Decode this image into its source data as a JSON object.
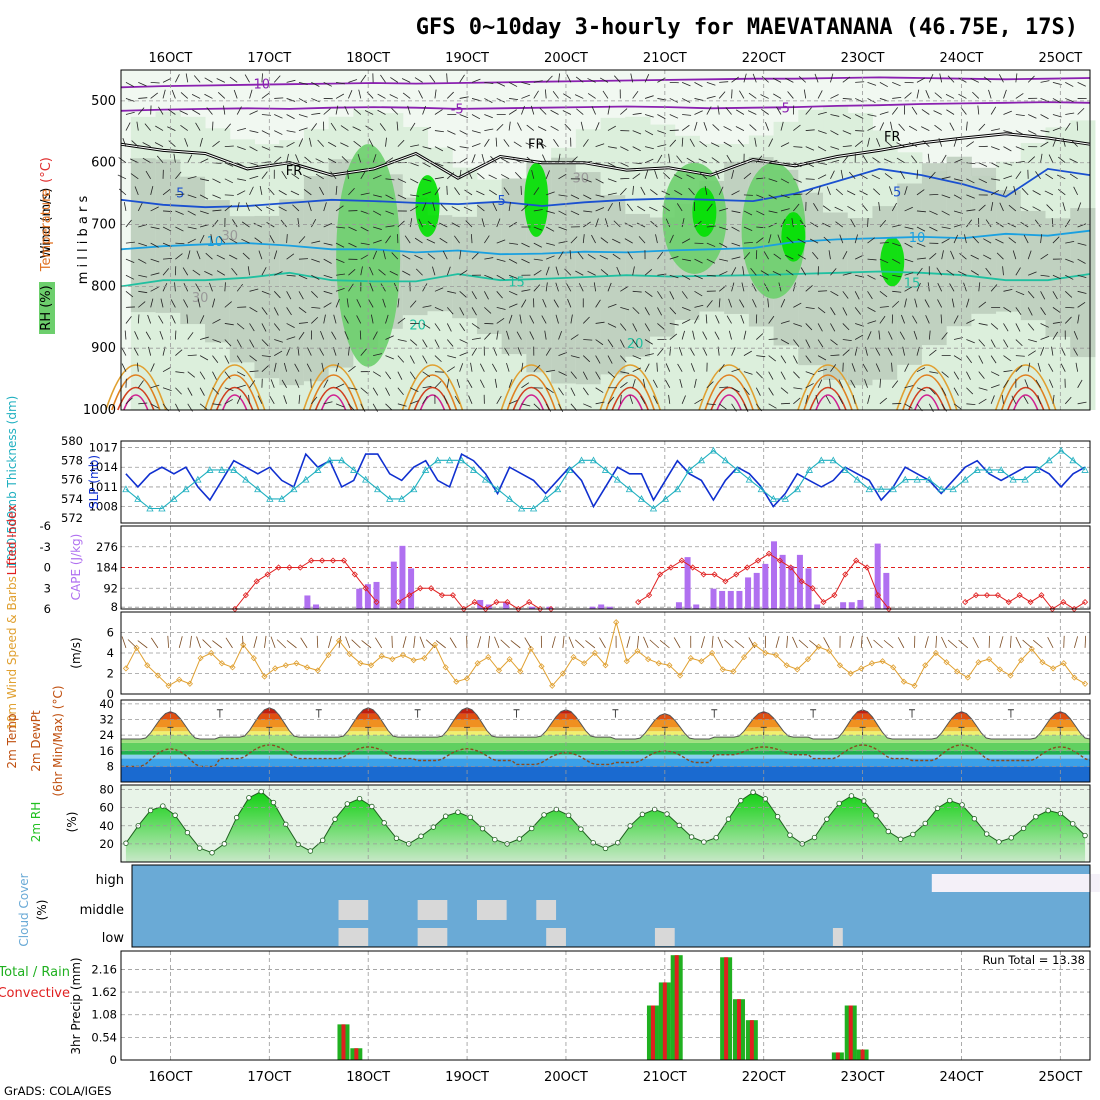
{
  "title": "GFS 0~10day 3-hourly for MAEVATANANA (46.75E, 17S)",
  "footer": "GrADS: COLA/IGES",
  "x_ticks": [
    "16OCT",
    "17OCT",
    "18OCT",
    "19OCT",
    "20OCT",
    "21OCT",
    "22OCT",
    "23OCT",
    "24OCT",
    "25OCT"
  ],
  "colors": {
    "rh_light": "#dcefdc",
    "rh_grey": "#b9c9b9",
    "rh_mid": "#6dcf6d",
    "rh_bright": "#00e000",
    "slp": "#1030d0",
    "thickness": "#20b0c0",
    "lifted_index": "#e02020",
    "cape": "#b070f0",
    "wind_speed": "#e0a030",
    "rh2m": "#20c020",
    "cloud": "#6aaad6",
    "cloud_clear": "#d8d8d8",
    "precip_total": "#20b020",
    "precip_conv": "#e02020"
  },
  "chart_data": [
    {
      "type": "heatmap",
      "name": "Upper air cross-section",
      "ylabel": "m i l l i b a r s",
      "yticks": [
        500,
        600,
        700,
        800,
        900,
        1000
      ],
      "ylim": [
        450,
        1000
      ],
      "legend_labels": {
        "rh": "RH (%)",
        "temperature": "Temperature",
        "unit": "(°C)",
        "wind": "Wind (m/s)"
      },
      "contour_labels": {
        "purple": [
          "-10",
          "-5",
          "-5"
        ],
        "freezing": [
          "FR",
          "FR",
          "FR"
        ],
        "blue": [
          "5",
          "5",
          "5"
        ],
        "lightblue": [
          "10",
          "10"
        ],
        "teal": [
          "15",
          "15",
          "20",
          "20"
        ],
        "rh": [
          "30",
          "30",
          "30"
        ]
      },
      "isotherms": [
        {
          "label": "-10",
          "p": [
            478,
            476,
            475,
            474,
            473,
            472,
            471,
            472,
            471,
            470,
            469,
            468,
            467,
            466,
            465,
            464,
            464,
            463,
            462,
            463,
            464,
            465,
            464,
            463
          ]
        },
        {
          "label": "-5",
          "p": [
            516,
            514,
            513,
            512,
            513,
            511,
            510,
            511,
            513,
            512,
            511,
            510,
            509,
            510,
            512,
            511,
            510,
            508,
            507,
            505,
            504,
            503,
            502,
            503
          ]
        },
        {
          "label": "FR",
          "p": [
            570,
            580,
            585,
            610,
            600,
            620,
            610,
            585,
            625,
            590,
            600,
            600,
            612,
            608,
            620,
            595,
            605,
            590,
            580,
            568,
            560,
            553,
            560,
            570
          ]
        },
        {
          "label": "5",
          "p": [
            660,
            668,
            672,
            670,
            665,
            660,
            662,
            665,
            667,
            663,
            670,
            664,
            660,
            658,
            660,
            662,
            650,
            630,
            610,
            620,
            635,
            655,
            610,
            620
          ]
        },
        {
          "label": "10",
          "p": [
            740,
            735,
            732,
            730,
            734,
            740,
            740,
            745,
            742,
            748,
            747,
            744,
            745,
            742,
            740,
            738,
            728,
            724,
            722,
            720,
            722,
            715,
            718,
            710
          ]
        },
        {
          "label": "15",
          "p": [
            800,
            790,
            790,
            786,
            778,
            790,
            792,
            792,
            780,
            790,
            788,
            785,
            782,
            784,
            783,
            782,
            780,
            778,
            776,
            778,
            782,
            790,
            790,
            780
          ]
        }
      ],
      "rh_blobs": [
        {
          "day": 18.0,
          "p": [
            570,
            930
          ],
          "level": "mid"
        },
        {
          "day": 18.6,
          "p": [
            620,
            720
          ],
          "level": "bright"
        },
        {
          "day": 19.7,
          "p": [
            600,
            720
          ],
          "level": "bright"
        },
        {
          "day": 21.3,
          "p": [
            600,
            780
          ],
          "level": "mid"
        },
        {
          "day": 21.4,
          "p": [
            640,
            720
          ],
          "level": "bright"
        },
        {
          "day": 22.1,
          "p": [
            600,
            820
          ],
          "level": "mid"
        },
        {
          "day": 22.3,
          "p": [
            680,
            760
          ],
          "level": "bright"
        },
        {
          "day": 23.3,
          "p": [
            720,
            800
          ],
          "level": "bright"
        }
      ]
    },
    {
      "type": "line",
      "name": "SLP and 1000-500mb thickness",
      "left_axis": {
        "label": "1000-500mb Thickness (dm)",
        "ticks": [
          572,
          574,
          576,
          578,
          580
        ],
        "ylim": [
          571.5,
          580
        ]
      },
      "right_axis": {
        "label": "SLP (mb)",
        "ticks": [
          1008,
          1011,
          1014,
          1017
        ],
        "ylim": [
          1005.5,
          1018
        ]
      },
      "series": [
        {
          "name": "SLP",
          "values": [
            1013,
            1011,
            1013,
            1014,
            1013,
            1014,
            1011,
            1009,
            1012,
            1015,
            1014,
            1013,
            1014,
            1012,
            1011,
            1016,
            1014,
            1015,
            1011,
            1012,
            1016,
            1016,
            1013,
            1012,
            1014,
            1015,
            1012,
            1011,
            1016,
            1015,
            1013,
            1010,
            1014,
            1013,
            1012,
            1010,
            1012,
            1014,
            1012,
            1008,
            1011,
            1014,
            1013,
            1013,
            1009,
            1012,
            1015,
            1013,
            1012,
            1009,
            1012,
            1014,
            1013,
            1011,
            1008,
            1010,
            1013,
            1012,
            1011,
            1012,
            1014,
            1013,
            1012,
            1009,
            1011,
            1014,
            1013,
            1012,
            1010,
            1012,
            1014,
            1015,
            1013,
            1012,
            1013,
            1014,
            1014,
            1013,
            1011,
            1013,
            1014
          ]
        },
        {
          "name": "Thickness",
          "values": [
            575,
            574,
            573,
            573,
            574,
            575,
            576,
            577,
            577,
            577,
            576,
            575,
            574,
            574,
            575,
            576,
            577,
            578,
            578,
            577,
            576,
            575,
            574,
            574,
            575,
            577,
            578,
            578,
            578,
            577,
            576,
            575,
            574,
            573,
            573,
            574,
            575,
            577,
            578,
            578,
            577,
            576,
            575,
            574,
            573,
            574,
            575,
            577,
            578,
            579,
            578,
            577,
            576,
            575,
            574,
            574,
            575,
            577,
            578,
            578,
            577,
            576,
            575,
            575,
            575,
            576,
            576,
            576,
            575,
            575,
            576,
            577,
            577,
            577,
            576,
            576,
            577,
            578,
            579,
            578,
            577
          ]
        }
      ]
    },
    {
      "type": "bar",
      "name": "CAPE and Lifted Index",
      "left_axis": {
        "label": "Lifted Index",
        "ticks": [
          -6,
          -3,
          0,
          3,
          6
        ],
        "ylim": [
          -6,
          6
        ]
      },
      "right_axis": {
        "label": "CAPE (J/kg)",
        "ticks": [
          8,
          92,
          184,
          276
        ],
        "ylim": [
          0,
          368
        ]
      },
      "lifted_index": [
        null,
        null,
        null,
        null,
        null,
        null,
        null,
        null,
        null,
        null,
        6,
        4,
        2,
        1,
        0,
        0,
        0,
        -1,
        -1,
        -1,
        -1,
        1,
        3,
        5,
        null,
        5,
        4,
        3,
        3,
        4,
        4,
        6,
        5,
        6,
        5,
        5,
        6,
        5,
        6,
        6,
        null,
        null,
        null,
        null,
        null,
        null,
        null,
        5,
        4,
        1,
        0,
        -1,
        0,
        1,
        1,
        2,
        1,
        0,
        -1,
        -2,
        -1,
        0,
        2,
        3,
        5,
        4,
        1,
        -1,
        0,
        4,
        6,
        null,
        null,
        null,
        null,
        null,
        null,
        5,
        4,
        4,
        4,
        5,
        4,
        5,
        4,
        6,
        5,
        6,
        5
      ],
      "cape": [
        0,
        0,
        0,
        0,
        0,
        0,
        0,
        0,
        0,
        0,
        0,
        0,
        0,
        0,
        0,
        0,
        0,
        0,
        0,
        0,
        0,
        60,
        20,
        0,
        0,
        0,
        0,
        90,
        110,
        120,
        0,
        210,
        280,
        180,
        0,
        0,
        0,
        0,
        0,
        0,
        0,
        40,
        20,
        0,
        30,
        0,
        0,
        10,
        0,
        10,
        0,
        0,
        0,
        0,
        10,
        20,
        10,
        0,
        0,
        0,
        0,
        0,
        0,
        0,
        30,
        230,
        20,
        0,
        90,
        80,
        80,
        80,
        140,
        160,
        200,
        300,
        240,
        190,
        240,
        180,
        20,
        0,
        0,
        30,
        30,
        40,
        0,
        290,
        160,
        0,
        0,
        0,
        0,
        0,
        0,
        0,
        0,
        0,
        0,
        0,
        0,
        0,
        0,
        0,
        0,
        0,
        0,
        0,
        0,
        0,
        0,
        0
      ]
    },
    {
      "type": "line",
      "name": "10m Wind Speed & Barbs",
      "ylabel": "10m Wind Speed & Barbs",
      "yunit": "(m/s)",
      "yticks": [
        0,
        2,
        4,
        6
      ],
      "ylim": [
        0,
        8
      ],
      "series": [
        {
          "name": "10m wind speed",
          "values": [
            2.5,
            4.5,
            2.8,
            1.8,
            0.8,
            1.4,
            1.0,
            3.5,
            4.0,
            3.0,
            2.6,
            4.8,
            3.5,
            1.7,
            2.5,
            2.8,
            3.0,
            2.6,
            2.3,
            3.8,
            5.2,
            3.9,
            3.0,
            2.8,
            3.7,
            3.4,
            3.8,
            3.3,
            3.5,
            4.8,
            2.6,
            1.2,
            1.5,
            3.0,
            3.6,
            2.3,
            3.4,
            2.2,
            4.4,
            2.7,
            0.8,
            2.0,
            3.6,
            3.0,
            4.0,
            2.8,
            7.0,
            3.2,
            4.2,
            3.4,
            3.0,
            2.8,
            1.8,
            3.5,
            3.2,
            4.0,
            2.4,
            2.2,
            3.6,
            4.8,
            4.0,
            3.8,
            2.8,
            2.4,
            3.4,
            4.6,
            4.2,
            2.8,
            2.0,
            2.5,
            3.0,
            3.2,
            2.6,
            1.2,
            0.8,
            2.8,
            4.0,
            3.1,
            2.2,
            1.6,
            3.1,
            3.4,
            2.4,
            1.8,
            3.3,
            4.4,
            3.1,
            2.5,
            3.0,
            1.6,
            1.0
          ]
        }
      ]
    },
    {
      "type": "area",
      "name": "2m Temp and DewPt",
      "ylabel": "2m Temp",
      "ylabel2": "2m DewPt",
      "ylabel3": "(6hr Min/Max) (°C)",
      "yticks": [
        8,
        16,
        24,
        32,
        40
      ],
      "ylim": [
        0,
        42
      ],
      "temp_peaks": [
        36,
        38,
        38,
        38,
        37,
        35,
        36,
        37,
        36,
        36
      ],
      "temp_mins": [
        22,
        23,
        23,
        23,
        23,
        22,
        23,
        22,
        22,
        22
      ],
      "dewpt_peaks": [
        17,
        19,
        18,
        17,
        15,
        16,
        18,
        19,
        19,
        18
      ],
      "dewpt_mins": [
        8,
        12,
        12,
        11,
        9,
        10,
        14,
        12,
        11,
        11
      ]
    },
    {
      "type": "area",
      "name": "2m RH",
      "ylabel": "2m RH",
      "yunit": "(%)",
      "yticks": [
        20,
        40,
        60,
        80
      ],
      "ylim": [
        0,
        85
      ],
      "peaks": [
        62,
        78,
        70,
        55,
        58,
        58,
        77,
        73,
        68,
        57
      ],
      "mins": [
        10,
        12,
        20,
        20,
        15,
        22,
        20,
        25,
        22,
        22
      ]
    },
    {
      "type": "heatmap",
      "name": "Cloud Cover",
      "ylabel": "Cloud Cover",
      "yunit": "(%)",
      "levels": [
        "high",
        "middle",
        "low"
      ],
      "high_clear": [
        [
          23.7,
          25.4
        ]
      ],
      "middle_clear": [
        [
          17.7,
          18.0
        ],
        [
          18.5,
          18.8
        ],
        [
          19.1,
          19.4
        ],
        [
          19.7,
          19.9
        ]
      ],
      "low_clear": [
        [
          17.7,
          18.0
        ],
        [
          18.5,
          18.8
        ],
        [
          19.8,
          20.0
        ],
        [
          20.9,
          21.1
        ],
        [
          22.7,
          22.8
        ]
      ]
    },
    {
      "type": "bar",
      "name": "3hr Precip",
      "ylabel": "3hr Precip (mm)",
      "left_label": "Total / Rain",
      "left_label2": "Convective",
      "yticks": [
        0,
        0.54,
        1.08,
        1.62,
        2.16
      ],
      "ylim": [
        0,
        2.6
      ],
      "run_total_label": "Run Total = 13.38",
      "bars": [
        {
          "day": 17.75,
          "value": 0.85
        },
        {
          "day": 17.88,
          "value": 0.28
        },
        {
          "day": 20.88,
          "value": 1.3
        },
        {
          "day": 21.0,
          "value": 1.85
        },
        {
          "day": 21.12,
          "value": 2.5
        },
        {
          "day": 21.62,
          "value": 2.45
        },
        {
          "day": 21.75,
          "value": 1.45
        },
        {
          "day": 21.88,
          "value": 0.95
        },
        {
          "day": 22.75,
          "value": 0.18
        },
        {
          "day": 22.88,
          "value": 1.3
        },
        {
          "day": 23.0,
          "value": 0.25
        }
      ]
    }
  ]
}
